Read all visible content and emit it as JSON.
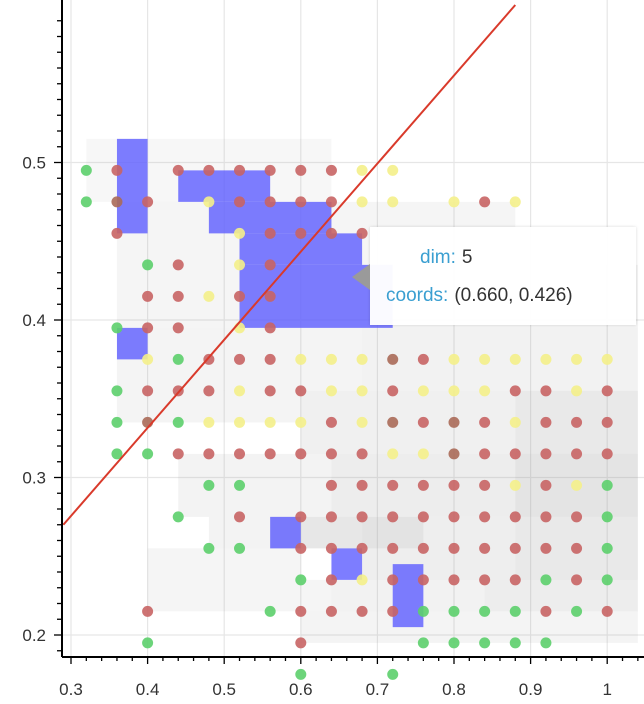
{
  "chart_data": {
    "type": "scatter",
    "title": "",
    "xlabel": "",
    "ylabel": "",
    "xlim": [
      0.29,
      1.05
    ],
    "ylim": [
      0.19,
      0.59
    ],
    "grid": true,
    "x_ticks": [
      "0.3",
      "0.4",
      "0.5",
      "0.6",
      "0.7",
      "0.8",
      "0.9",
      "1"
    ],
    "y_ticks": [
      "0.2",
      "0.3",
      "0.4",
      "0.5"
    ],
    "line": {
      "color": "#d93a2b",
      "points": [
        [
          0.29,
          0.27
        ],
        [
          0.88,
          0.6
        ]
      ]
    },
    "colors": {
      "green": "#5ccf6b",
      "red": "#c86464",
      "brown": "#aa6a58",
      "yellow": "#f4f08a",
      "blue": "#6060ff",
      "gray": "#b4b4b4"
    },
    "gray_cells": [
      [
        0.32,
        0.44,
        0.475,
        0.515,
        0.35
      ],
      [
        0.44,
        0.64,
        0.475,
        0.515,
        0.35
      ],
      [
        0.36,
        0.64,
        0.395,
        0.475,
        0.45
      ],
      [
        0.64,
        0.88,
        0.435,
        0.475,
        0.45
      ],
      [
        0.64,
        1.04,
        0.395,
        0.435,
        0.5
      ],
      [
        0.36,
        0.68,
        0.355,
        0.395,
        0.5
      ],
      [
        0.68,
        1.04,
        0.355,
        0.395,
        0.6
      ],
      [
        0.36,
        0.6,
        0.335,
        0.355,
        0.5
      ],
      [
        0.6,
        0.88,
        0.315,
        0.355,
        0.7
      ],
      [
        0.88,
        1.04,
        0.315,
        0.355,
        1.0
      ],
      [
        0.44,
        0.64,
        0.275,
        0.315,
        0.55
      ],
      [
        0.64,
        0.88,
        0.275,
        0.315,
        0.8
      ],
      [
        0.88,
        1.04,
        0.275,
        0.315,
        1.2
      ],
      [
        0.48,
        0.68,
        0.255,
        0.275,
        0.55
      ],
      [
        0.68,
        0.88,
        0.235,
        0.275,
        0.75
      ],
      [
        0.88,
        1.04,
        0.235,
        0.275,
        1.0
      ],
      [
        0.4,
        0.64,
        0.215,
        0.235,
        0.45
      ],
      [
        0.64,
        0.84,
        0.215,
        0.235,
        0.6
      ],
      [
        0.84,
        1.04,
        0.215,
        0.235,
        0.8
      ],
      [
        0.6,
        1.04,
        0.195,
        0.215,
        0.5
      ],
      [
        0.4,
        0.6,
        0.235,
        0.255,
        0.45
      ],
      [
        0.56,
        0.76,
        0.255,
        0.275,
        0.6
      ]
    ],
    "blue_cells": [
      [
        0.36,
        0.4,
        0.455,
        0.515
      ],
      [
        0.44,
        0.56,
        0.475,
        0.495
      ],
      [
        0.48,
        0.64,
        0.455,
        0.475
      ],
      [
        0.52,
        0.68,
        0.435,
        0.455
      ],
      [
        0.52,
        0.72,
        0.395,
        0.435
      ],
      [
        0.36,
        0.4,
        0.375,
        0.395
      ],
      [
        0.56,
        0.6,
        0.255,
        0.275
      ],
      [
        0.64,
        0.68,
        0.235,
        0.255
      ],
      [
        0.72,
        0.76,
        0.205,
        0.245
      ]
    ],
    "points": [
      [
        0.32,
        0.495,
        "green"
      ],
      [
        0.32,
        0.475,
        "green"
      ],
      [
        0.36,
        0.495,
        "red"
      ],
      [
        0.36,
        0.475,
        "brown"
      ],
      [
        0.36,
        0.455,
        "red"
      ],
      [
        0.4,
        0.475,
        "red"
      ],
      [
        0.44,
        0.495,
        "red"
      ],
      [
        0.48,
        0.495,
        "red"
      ],
      [
        0.52,
        0.495,
        "red"
      ],
      [
        0.56,
        0.495,
        "red"
      ],
      [
        0.6,
        0.495,
        "red"
      ],
      [
        0.64,
        0.495,
        "red"
      ],
      [
        0.68,
        0.495,
        "yellow"
      ],
      [
        0.72,
        0.495,
        "yellow"
      ],
      [
        0.48,
        0.475,
        "yellow"
      ],
      [
        0.52,
        0.475,
        "red"
      ],
      [
        0.56,
        0.475,
        "red"
      ],
      [
        0.6,
        0.475,
        "red"
      ],
      [
        0.64,
        0.475,
        "red"
      ],
      [
        0.68,
        0.475,
        "yellow"
      ],
      [
        0.72,
        0.475,
        "yellow"
      ],
      [
        0.8,
        0.475,
        "yellow"
      ],
      [
        0.84,
        0.475,
        "red"
      ],
      [
        0.88,
        0.475,
        "yellow"
      ],
      [
        0.52,
        0.455,
        "yellow"
      ],
      [
        0.56,
        0.455,
        "red"
      ],
      [
        0.6,
        0.455,
        "red"
      ],
      [
        0.64,
        0.455,
        "red"
      ],
      [
        0.68,
        0.455,
        "red"
      ],
      [
        0.4,
        0.435,
        "green"
      ],
      [
        0.44,
        0.435,
        "red"
      ],
      [
        0.52,
        0.435,
        "yellow"
      ],
      [
        0.56,
        0.435,
        "red"
      ],
      [
        0.4,
        0.415,
        "red"
      ],
      [
        0.44,
        0.415,
        "red"
      ],
      [
        0.48,
        0.415,
        "yellow"
      ],
      [
        0.52,
        0.415,
        "red"
      ],
      [
        0.56,
        0.415,
        "red"
      ],
      [
        0.36,
        0.395,
        "green"
      ],
      [
        0.4,
        0.395,
        "red"
      ],
      [
        0.44,
        0.395,
        "red"
      ],
      [
        0.52,
        0.395,
        "yellow"
      ],
      [
        0.56,
        0.395,
        "red"
      ],
      [
        0.4,
        0.375,
        "yellow"
      ],
      [
        0.44,
        0.375,
        "green"
      ],
      [
        0.48,
        0.375,
        "red"
      ],
      [
        0.52,
        0.375,
        "red"
      ],
      [
        0.56,
        0.375,
        "red"
      ],
      [
        0.6,
        0.375,
        "yellow"
      ],
      [
        0.64,
        0.375,
        "yellow"
      ],
      [
        0.68,
        0.375,
        "yellow"
      ],
      [
        0.72,
        0.375,
        "brown"
      ],
      [
        0.76,
        0.375,
        "red"
      ],
      [
        0.8,
        0.375,
        "yellow"
      ],
      [
        0.84,
        0.375,
        "yellow"
      ],
      [
        0.88,
        0.375,
        "yellow"
      ],
      [
        0.92,
        0.375,
        "yellow"
      ],
      [
        0.96,
        0.375,
        "yellow"
      ],
      [
        1.0,
        0.375,
        "yellow"
      ],
      [
        0.36,
        0.355,
        "green"
      ],
      [
        0.4,
        0.355,
        "red"
      ],
      [
        0.44,
        0.355,
        "red"
      ],
      [
        0.48,
        0.355,
        "red"
      ],
      [
        0.52,
        0.355,
        "yellow"
      ],
      [
        0.56,
        0.355,
        "red"
      ],
      [
        0.6,
        0.355,
        "red"
      ],
      [
        0.64,
        0.355,
        "yellow"
      ],
      [
        0.68,
        0.355,
        "yellow"
      ],
      [
        0.72,
        0.355,
        "red"
      ],
      [
        0.76,
        0.355,
        "yellow"
      ],
      [
        0.8,
        0.355,
        "yellow"
      ],
      [
        0.84,
        0.355,
        "yellow"
      ],
      [
        0.88,
        0.355,
        "red"
      ],
      [
        0.92,
        0.355,
        "red"
      ],
      [
        0.96,
        0.355,
        "yellow"
      ],
      [
        1.0,
        0.355,
        "red"
      ],
      [
        0.36,
        0.335,
        "green"
      ],
      [
        0.4,
        0.335,
        "brown"
      ],
      [
        0.44,
        0.335,
        "green"
      ],
      [
        0.48,
        0.335,
        "yellow"
      ],
      [
        0.52,
        0.335,
        "yellow"
      ],
      [
        0.56,
        0.335,
        "yellow"
      ],
      [
        0.6,
        0.335,
        "yellow"
      ],
      [
        0.64,
        0.335,
        "red"
      ],
      [
        0.68,
        0.335,
        "yellow"
      ],
      [
        0.72,
        0.335,
        "brown"
      ],
      [
        0.76,
        0.335,
        "red"
      ],
      [
        0.8,
        0.335,
        "brown"
      ],
      [
        0.84,
        0.335,
        "red"
      ],
      [
        0.88,
        0.335,
        "yellow"
      ],
      [
        0.92,
        0.335,
        "red"
      ],
      [
        0.96,
        0.335,
        "red"
      ],
      [
        1.0,
        0.335,
        "red"
      ],
      [
        0.36,
        0.315,
        "green"
      ],
      [
        0.4,
        0.315,
        "green"
      ],
      [
        0.44,
        0.315,
        "red"
      ],
      [
        0.48,
        0.315,
        "red"
      ],
      [
        0.52,
        0.315,
        "red"
      ],
      [
        0.56,
        0.315,
        "red"
      ],
      [
        0.6,
        0.315,
        "red"
      ],
      [
        0.64,
        0.315,
        "red"
      ],
      [
        0.68,
        0.315,
        "red"
      ],
      [
        0.72,
        0.315,
        "yellow"
      ],
      [
        0.76,
        0.315,
        "yellow"
      ],
      [
        0.8,
        0.315,
        "brown"
      ],
      [
        0.84,
        0.315,
        "red"
      ],
      [
        0.88,
        0.315,
        "red"
      ],
      [
        0.92,
        0.315,
        "red"
      ],
      [
        0.96,
        0.315,
        "red"
      ],
      [
        1.0,
        0.315,
        "red"
      ],
      [
        0.48,
        0.295,
        "green"
      ],
      [
        0.52,
        0.295,
        "green"
      ],
      [
        0.64,
        0.295,
        "red"
      ],
      [
        0.68,
        0.295,
        "red"
      ],
      [
        0.72,
        0.295,
        "red"
      ],
      [
        0.76,
        0.295,
        "red"
      ],
      [
        0.8,
        0.295,
        "red"
      ],
      [
        0.84,
        0.295,
        "red"
      ],
      [
        0.88,
        0.295,
        "yellow"
      ],
      [
        0.92,
        0.295,
        "red"
      ],
      [
        0.96,
        0.295,
        "yellow"
      ],
      [
        1.0,
        0.295,
        "green"
      ],
      [
        0.6,
        0.275,
        "red"
      ],
      [
        0.64,
        0.275,
        "red"
      ],
      [
        0.68,
        0.275,
        "red"
      ],
      [
        0.72,
        0.275,
        "red"
      ],
      [
        0.76,
        0.275,
        "red"
      ],
      [
        0.8,
        0.275,
        "red"
      ],
      [
        0.84,
        0.275,
        "red"
      ],
      [
        0.88,
        0.275,
        "red"
      ],
      [
        0.92,
        0.275,
        "red"
      ],
      [
        0.96,
        0.275,
        "red"
      ],
      [
        1.0,
        0.275,
        "green"
      ],
      [
        0.44,
        0.275,
        "green"
      ],
      [
        0.52,
        0.275,
        "red"
      ],
      [
        0.48,
        0.255,
        "green"
      ],
      [
        0.52,
        0.255,
        "green"
      ],
      [
        0.6,
        0.255,
        "red"
      ],
      [
        0.64,
        0.255,
        "red"
      ],
      [
        0.68,
        0.255,
        "red"
      ],
      [
        0.72,
        0.255,
        "red"
      ],
      [
        0.76,
        0.255,
        "red"
      ],
      [
        0.8,
        0.255,
        "red"
      ],
      [
        0.84,
        0.255,
        "red"
      ],
      [
        0.88,
        0.255,
        "red"
      ],
      [
        0.92,
        0.255,
        "red"
      ],
      [
        0.96,
        0.255,
        "red"
      ],
      [
        1.0,
        0.255,
        "green"
      ],
      [
        0.6,
        0.235,
        "green"
      ],
      [
        0.64,
        0.235,
        "red"
      ],
      [
        0.68,
        0.235,
        "yellow"
      ],
      [
        0.72,
        0.235,
        "red"
      ],
      [
        0.76,
        0.235,
        "red"
      ],
      [
        0.8,
        0.235,
        "red"
      ],
      [
        0.84,
        0.235,
        "red"
      ],
      [
        0.88,
        0.235,
        "red"
      ],
      [
        0.92,
        0.235,
        "green"
      ],
      [
        0.96,
        0.235,
        "red"
      ],
      [
        1.0,
        0.235,
        "green"
      ],
      [
        0.4,
        0.215,
        "red"
      ],
      [
        0.56,
        0.215,
        "green"
      ],
      [
        0.6,
        0.215,
        "red"
      ],
      [
        0.64,
        0.215,
        "red"
      ],
      [
        0.68,
        0.215,
        "red"
      ],
      [
        0.72,
        0.215,
        "red"
      ],
      [
        0.76,
        0.215,
        "green"
      ],
      [
        0.8,
        0.215,
        "green"
      ],
      [
        0.84,
        0.215,
        "green"
      ],
      [
        0.88,
        0.215,
        "green"
      ],
      [
        0.92,
        0.215,
        "red"
      ],
      [
        0.96,
        0.215,
        "green"
      ],
      [
        1.0,
        0.215,
        "red"
      ],
      [
        0.4,
        0.195,
        "green"
      ],
      [
        0.6,
        0.195,
        "red"
      ],
      [
        0.76,
        0.195,
        "green"
      ],
      [
        0.8,
        0.195,
        "green"
      ],
      [
        0.84,
        0.195,
        "green"
      ],
      [
        0.88,
        0.195,
        "green"
      ],
      [
        0.92,
        0.195,
        "green"
      ],
      [
        0.6,
        0.175,
        "green"
      ],
      [
        0.72,
        0.175,
        "green"
      ]
    ]
  },
  "tooltip": {
    "dim_label": "dim:",
    "dim_value": "5",
    "coords_label": "coords:",
    "coords_value": "(0.660, 0.426)"
  }
}
